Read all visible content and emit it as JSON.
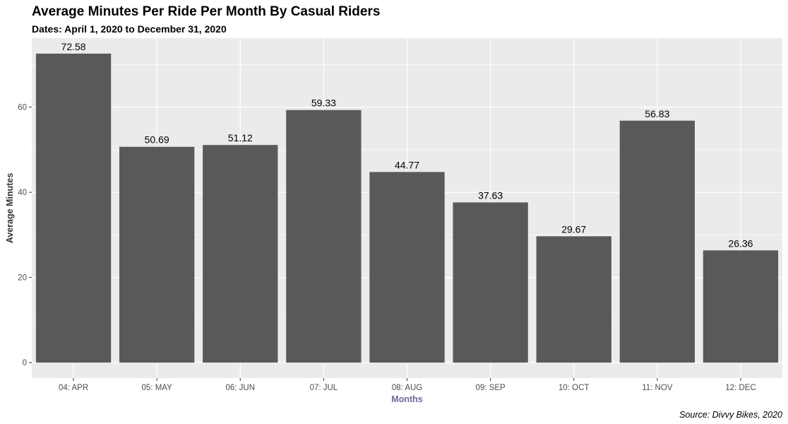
{
  "colors": {
    "panel_background": "#ebebeb",
    "grid": "#ffffff",
    "bar_fill": "#595959",
    "xlabel_color": "#6b6b9a",
    "tick_color": "#4d4d4d"
  },
  "chart_data": {
    "type": "bar",
    "title": "Average Minutes Per Ride Per Month By Casual Riders",
    "subtitle": "Dates: April 1, 2020 to December 31, 2020",
    "xlabel": "Months",
    "ylabel": "Average Minutes",
    "caption": "Source: Divvy Bikes, 2020",
    "categories": [
      "04: APR",
      "05: MAY",
      "06: JUN",
      "07: JUL",
      "08: AUG",
      "09: SEP",
      "10: OCT",
      "11: NOV",
      "12: DEC"
    ],
    "values": [
      72.58,
      50.69,
      51.12,
      59.33,
      44.77,
      37.63,
      29.67,
      56.83,
      26.36
    ],
    "data_labels": [
      "72.58",
      "50.69",
      "51.12",
      "59.33",
      "44.77",
      "37.63",
      "29.67",
      "56.83",
      "26.36"
    ],
    "ylim": [
      -3.63,
      76.21
    ],
    "yticks": [
      0,
      20,
      40,
      60
    ],
    "ytick_labels": [
      "0",
      "20",
      "40",
      "60"
    ],
    "grid": true,
    "legend": "none"
  }
}
